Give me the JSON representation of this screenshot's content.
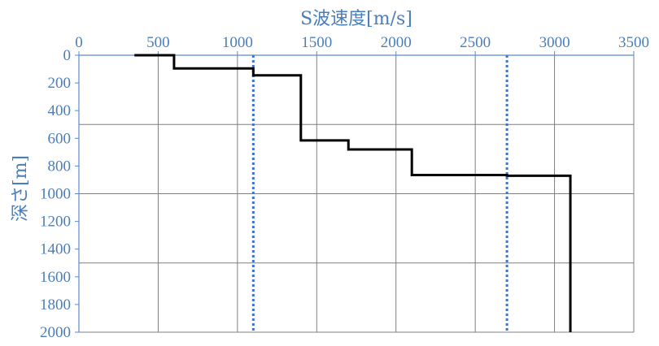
{
  "chart_data": {
    "type": "line",
    "xlabel": "S波速度[m/s]",
    "ylabel": "深さ[m]",
    "xlim": [
      0,
      3500
    ],
    "ylim": [
      0,
      2000
    ],
    "y_inverted": true,
    "x_axis_position": "top",
    "x_ticks": [
      0,
      500,
      1000,
      1500,
      2000,
      2500,
      3000,
      3500
    ],
    "y_ticks": [
      0,
      200,
      400,
      600,
      800,
      1000,
      1200,
      1400,
      1600,
      1800,
      2000
    ],
    "gridlines": {
      "vertical_at_x": [
        500,
        1000,
        1500,
        2000,
        2500,
        3000,
        3500
      ],
      "horizontal_at_y": [
        500,
        1000,
        1500,
        2000
      ]
    },
    "series": [
      {
        "style": "solid",
        "color": "#000000",
        "points": [
          [
            350,
            0
          ],
          [
            600,
            0
          ],
          [
            600,
            95
          ],
          [
            1100,
            95
          ],
          [
            1100,
            145
          ],
          [
            1400,
            145
          ],
          [
            1400,
            615
          ],
          [
            1700,
            615
          ],
          [
            1700,
            680
          ],
          [
            2100,
            680
          ],
          [
            2100,
            865
          ],
          [
            2700,
            865
          ],
          [
            2700,
            870
          ],
          [
            3100,
            870
          ],
          [
            3100,
            2000
          ]
        ]
      }
    ],
    "reference_lines": [
      {
        "orientation": "vertical",
        "x": 1100,
        "style": "dotted",
        "color": "#4472C4"
      },
      {
        "orientation": "vertical",
        "x": 2700,
        "style": "dotted",
        "color": "#4472C4"
      }
    ],
    "colors": {
      "text": "#4A7EBB",
      "axis": "#5B8BD0",
      "grid": "#7F7F7F",
      "profile": "#000000",
      "reference": "#4472C4"
    }
  }
}
